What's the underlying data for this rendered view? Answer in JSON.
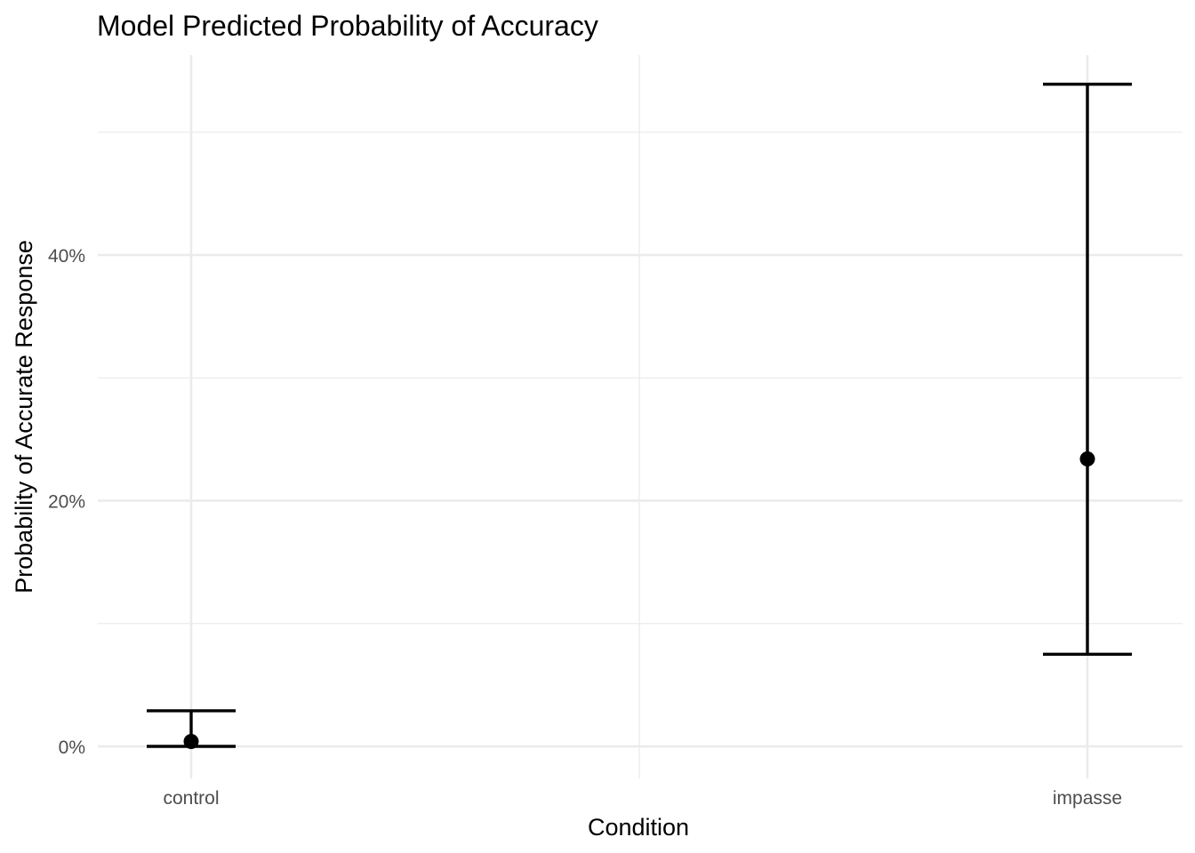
{
  "chart_data": {
    "type": "scatter",
    "title": "Model Predicted Probability of Accuracy",
    "xlabel": "Condition",
    "ylabel": "Probability of Accurate Response",
    "categories": [
      "control",
      "impasse"
    ],
    "estimates": [
      0.004,
      0.234
    ],
    "ci_lower": [
      0.0,
      0.075
    ],
    "ci_upper": [
      0.029,
      0.539
    ],
    "ylim": [
      -0.023,
      0.564
    ],
    "y_ticks": [
      0,
      0.2,
      0.4
    ],
    "y_tick_labels": [
      "0%",
      "20%",
      "40%"
    ],
    "y_minor_ticks": [
      0.1,
      0.3,
      0.5
    ],
    "grid": true,
    "legend": "none",
    "color": "#000000"
  }
}
